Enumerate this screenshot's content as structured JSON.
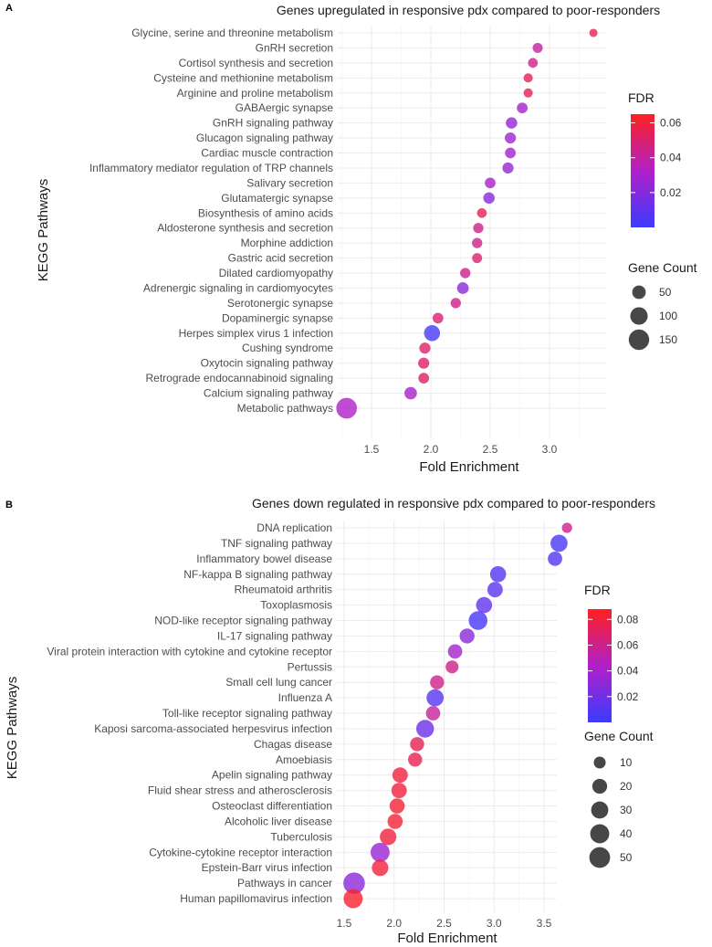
{
  "chart_data": [
    {
      "type": "scatter",
      "panel": "A",
      "title": "Genes upregulated in responsive pdx compared to poor-responders",
      "xlabel": "Fold Enrichment",
      "ylabel": "KEGG Pathways",
      "xlim": [
        1.2,
        3.4
      ],
      "xticks": [
        1.5,
        2.0,
        2.5,
        3.0
      ],
      "xtick_labels": [
        "1.5",
        "2.0",
        "2.5",
        "3.0"
      ],
      "color_legend": {
        "title": "FDR",
        "min": 0.0,
        "max": 0.065,
        "ticks": [
          0.02,
          0.04,
          0.06
        ],
        "tick_labels": [
          "0.02",
          "0.04",
          "0.06"
        ],
        "low_color": "#3b3bff",
        "mid_color": "#b020c8",
        "high_color": "#ff2020"
      },
      "size_legend": {
        "title": "Gene Count",
        "values": [
          50,
          100,
          150
        ],
        "labels": [
          "50",
          "100",
          "150"
        ],
        "max_count": 160
      },
      "points": [
        {
          "pathway": "Glycine, serine and threonine metabolism",
          "fold": 3.37,
          "fdr": 0.055,
          "count": 10
        },
        {
          "pathway": "GnRH secretion",
          "fold": 2.9,
          "fdr": 0.04,
          "count": 20
        },
        {
          "pathway": "Cortisol synthesis and secretion",
          "fold": 2.86,
          "fdr": 0.045,
          "count": 18
        },
        {
          "pathway": "Cysteine and methionine metabolism",
          "fold": 2.82,
          "fdr": 0.055,
          "count": 15
        },
        {
          "pathway": "Arginine and proline metabolism",
          "fold": 2.82,
          "fdr": 0.055,
          "count": 15
        },
        {
          "pathway": "GABAergic synapse",
          "fold": 2.77,
          "fdr": 0.03,
          "count": 25
        },
        {
          "pathway": "GnRH signaling pathway",
          "fold": 2.68,
          "fdr": 0.025,
          "count": 30
        },
        {
          "pathway": "Glucagon signaling pathway",
          "fold": 2.67,
          "fdr": 0.028,
          "count": 28
        },
        {
          "pathway": "Cardiac muscle contraction",
          "fold": 2.67,
          "fdr": 0.03,
          "count": 25
        },
        {
          "pathway": "Inflammatory mediator regulation of TRP channels",
          "fold": 2.65,
          "fdr": 0.025,
          "count": 28
        },
        {
          "pathway": "Salivary secretion",
          "fold": 2.5,
          "fdr": 0.03,
          "count": 25
        },
        {
          "pathway": "Glutamatergic synapse",
          "fold": 2.49,
          "fdr": 0.022,
          "count": 30
        },
        {
          "pathway": "Biosynthesis of amino acids",
          "fold": 2.43,
          "fdr": 0.055,
          "count": 18
        },
        {
          "pathway": "Aldosterone synthesis and secretion",
          "fold": 2.4,
          "fdr": 0.045,
          "count": 22
        },
        {
          "pathway": "Morphine addiction",
          "fold": 2.39,
          "fdr": 0.045,
          "count": 22
        },
        {
          "pathway": "Gastric acid secretion",
          "fold": 2.39,
          "fdr": 0.05,
          "count": 20
        },
        {
          "pathway": "Dilated cardiomyopathy",
          "fold": 2.29,
          "fdr": 0.045,
          "count": 22
        },
        {
          "pathway": "Adrenergic signaling in cardiomyocytes",
          "fold": 2.27,
          "fdr": 0.022,
          "count": 33
        },
        {
          "pathway": "Serotonergic synapse",
          "fold": 2.21,
          "fdr": 0.045,
          "count": 22
        },
        {
          "pathway": "Dopaminergic synapse",
          "fold": 2.06,
          "fdr": 0.05,
          "count": 25
        },
        {
          "pathway": "Herpes simplex virus 1 infection",
          "fold": 2.01,
          "fdr": 0.003,
          "count": 80
        },
        {
          "pathway": "Cushing syndrome",
          "fold": 1.95,
          "fdr": 0.05,
          "count": 28
        },
        {
          "pathway": "Oxytocin signaling pathway",
          "fold": 1.94,
          "fdr": 0.05,
          "count": 28
        },
        {
          "pathway": "Retrograde endocannabinoid signaling",
          "fold": 1.94,
          "fdr": 0.052,
          "count": 25
        },
        {
          "pathway": "Calcium signaling pathway",
          "fold": 1.83,
          "fdr": 0.03,
          "count": 40
        },
        {
          "pathway": "Metabolic pathways",
          "fold": 1.29,
          "fdr": 0.032,
          "count": 155
        }
      ]
    },
    {
      "type": "scatter",
      "panel": "B",
      "title": "Genes down regulated in responsive pdx compared to poor-responders",
      "xlabel": "Fold Enrichment",
      "ylabel": "KEGG Pathways",
      "xlim": [
        1.5,
        3.8
      ],
      "xticks": [
        1.5,
        2.0,
        2.5,
        3.0,
        3.5
      ],
      "xtick_labels": [
        "1.5",
        "2.0",
        "2.5",
        "3.0",
        "3.5"
      ],
      "color_legend": {
        "title": "FDR",
        "min": 0.0,
        "max": 0.088,
        "ticks": [
          0.02,
          0.04,
          0.06,
          0.08
        ],
        "tick_labels": [
          "0.02",
          "0.04",
          "0.06",
          "0.08"
        ],
        "low_color": "#3b3bff",
        "mid_color": "#b020c8",
        "high_color": "#ff2020"
      },
      "size_legend": {
        "title": "Gene Count",
        "values": [
          10,
          20,
          30,
          40,
          50
        ],
        "labels": [
          "10",
          "20",
          "30",
          "40",
          "50"
        ],
        "max_count": 55
      },
      "points": [
        {
          "pathway": "DNA replication",
          "fold": 3.73,
          "fdr": 0.06,
          "count": 6
        },
        {
          "pathway": "TNF signaling pathway",
          "fold": 3.65,
          "fdr": 0.005,
          "count": 30
        },
        {
          "pathway": "Inflammatory bowel disease",
          "fold": 3.61,
          "fdr": 0.01,
          "count": 18
        },
        {
          "pathway": "NF-kappa B signaling pathway",
          "fold": 3.04,
          "fdr": 0.01,
          "count": 25
        },
        {
          "pathway": "Rheumatoid arthritis",
          "fold": 3.01,
          "fdr": 0.012,
          "count": 22
        },
        {
          "pathway": "Toxoplasmosis",
          "fold": 2.9,
          "fdr": 0.015,
          "count": 25
        },
        {
          "pathway": "NOD-like receptor signaling pathway",
          "fold": 2.84,
          "fdr": 0.005,
          "count": 38
        },
        {
          "pathway": "IL-17 signaling pathway",
          "fold": 2.73,
          "fdr": 0.03,
          "count": 20
        },
        {
          "pathway": "Viral protein interaction with cytokine and cytokine receptor",
          "fold": 2.61,
          "fdr": 0.04,
          "count": 18
        },
        {
          "pathway": "Pertussis",
          "fold": 2.58,
          "fdr": 0.06,
          "count": 13
        },
        {
          "pathway": "Small cell lung cancer",
          "fold": 2.43,
          "fdr": 0.06,
          "count": 17
        },
        {
          "pathway": "Influenza A",
          "fold": 2.41,
          "fdr": 0.01,
          "count": 30
        },
        {
          "pathway": "Toll-like receptor signaling pathway",
          "fold": 2.39,
          "fdr": 0.055,
          "count": 18
        },
        {
          "pathway": "Kaposi sarcoma-associated herpesvirus infection",
          "fold": 2.31,
          "fdr": 0.018,
          "count": 33
        },
        {
          "pathway": "Chagas disease",
          "fold": 2.23,
          "fdr": 0.075,
          "count": 17
        },
        {
          "pathway": "Amoebiasis",
          "fold": 2.21,
          "fdr": 0.075,
          "count": 17
        },
        {
          "pathway": "Apelin signaling pathway",
          "fold": 2.06,
          "fdr": 0.08,
          "count": 22
        },
        {
          "pathway": "Fluid shear stress and atherosclerosis",
          "fold": 2.05,
          "fdr": 0.08,
          "count": 22
        },
        {
          "pathway": "Osteoclast differentiation",
          "fold": 2.03,
          "fdr": 0.082,
          "count": 21
        },
        {
          "pathway": "Alcoholic liver disease",
          "fold": 2.01,
          "fdr": 0.082,
          "count": 21
        },
        {
          "pathway": "Tuberculosis",
          "fold": 1.94,
          "fdr": 0.08,
          "count": 27
        },
        {
          "pathway": "Cytokine-cytokine receptor interaction",
          "fold": 1.86,
          "fdr": 0.035,
          "count": 40
        },
        {
          "pathway": "Epstein-Barr virus infection",
          "fold": 1.86,
          "fdr": 0.08,
          "count": 27
        },
        {
          "pathway": "Pathways in cancer",
          "fold": 1.6,
          "fdr": 0.03,
          "count": 55
        },
        {
          "pathway": "Human papillomavirus infection",
          "fold": 1.59,
          "fdr": 0.085,
          "count": 40
        }
      ]
    }
  ]
}
